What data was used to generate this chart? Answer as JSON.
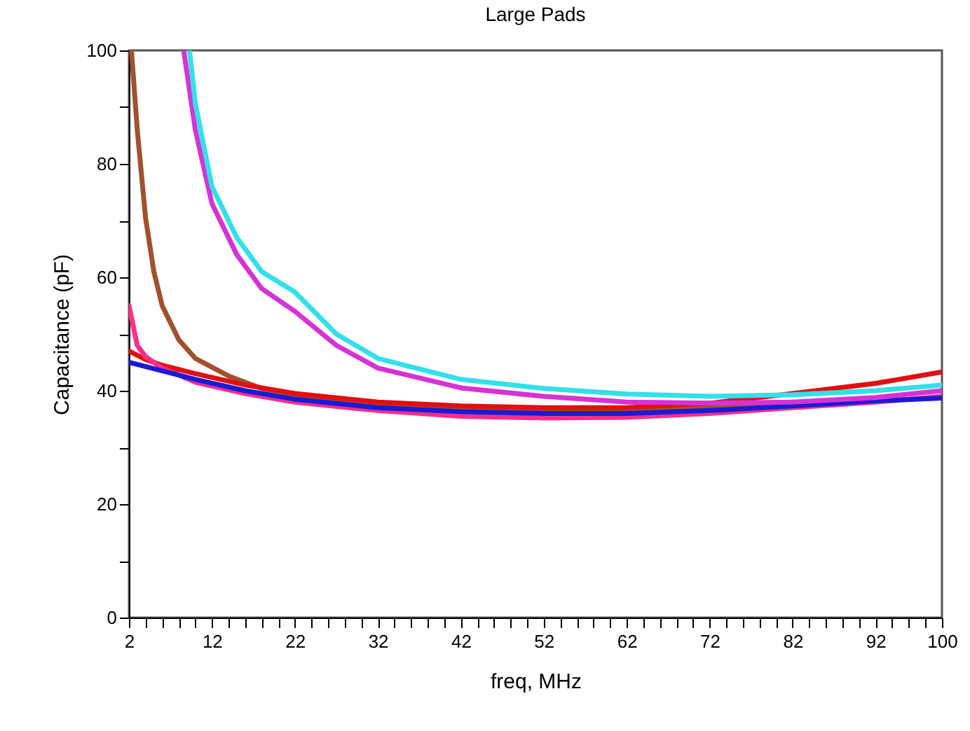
{
  "chart_data": {
    "type": "line",
    "title": "Large Pads",
    "xlabel": "freq, MHz",
    "ylabel": "Capacitance (pF)",
    "xlim": [
      2,
      100
    ],
    "ylim": [
      0,
      100
    ],
    "xticks": [
      2,
      {
        "value": 4,
        "label": null
      },
      {
        "value": 6,
        "label": null
      },
      {
        "value": 8,
        "label": null
      },
      {
        "value": 10,
        "label": null
      },
      12,
      {
        "value": 14,
        "label": null
      },
      {
        "value": 16,
        "label": null
      },
      {
        "value": 18,
        "label": null
      },
      {
        "value": 20,
        "label": null
      },
      22,
      {
        "value": 24,
        "label": null
      },
      {
        "value": 26,
        "label": null
      },
      {
        "value": 28,
        "label": null
      },
      {
        "value": 30,
        "label": null
      },
      32,
      {
        "value": 34,
        "label": null
      },
      {
        "value": 36,
        "label": null
      },
      {
        "value": 38,
        "label": null
      },
      {
        "value": 40,
        "label": null
      },
      42,
      {
        "value": 44,
        "label": null
      },
      {
        "value": 46,
        "label": null
      },
      {
        "value": 48,
        "label": null
      },
      {
        "value": 50,
        "label": null
      },
      52,
      {
        "value": 54,
        "label": null
      },
      {
        "value": 56,
        "label": null
      },
      {
        "value": 58,
        "label": null
      },
      {
        "value": 60,
        "label": null
      },
      62,
      {
        "value": 64,
        "label": null
      },
      {
        "value": 66,
        "label": null
      },
      {
        "value": 68,
        "label": null
      },
      {
        "value": 70,
        "label": null
      },
      72,
      {
        "value": 74,
        "label": null
      },
      {
        "value": 76,
        "label": null
      },
      {
        "value": 78,
        "label": null
      },
      {
        "value": 80,
        "label": null
      },
      82,
      {
        "value": 84,
        "label": null
      },
      {
        "value": 86,
        "label": null
      },
      {
        "value": 88,
        "label": null
      },
      {
        "value": 90,
        "label": null
      },
      92,
      {
        "value": 94,
        "label": null
      },
      {
        "value": 96,
        "label": null
      },
      {
        "value": 98,
        "label": null
      },
      100
    ],
    "yticks": [
      0,
      {
        "value": 10,
        "label": null
      },
      20,
      {
        "value": 30,
        "label": null
      },
      40,
      {
        "value": 50,
        "label": null
      },
      60,
      {
        "value": 70,
        "label": null
      },
      80,
      {
        "value": 90,
        "label": null
      },
      100
    ],
    "grid": false,
    "legend": false,
    "marker": "none",
    "line_style": "solid",
    "series": [
      {
        "color": "#a0522d",
        "x": [
          2.3,
          3,
          4,
          5,
          6,
          8,
          10,
          14,
          18,
          25,
          32,
          42,
          52,
          62,
          72,
          82
        ],
        "values": [
          100,
          86,
          70.5,
          61,
          55,
          49,
          45.7,
          42.6,
          40.4,
          38.5,
          37.5,
          36.8,
          36.5,
          36.6,
          37,
          38
        ]
      },
      {
        "color": "#e01010",
        "x": [
          2,
          4,
          6,
          10,
          16,
          22,
          32,
          42,
          52,
          62,
          72,
          82,
          92,
          100
        ],
        "values": [
          47,
          45.5,
          44.5,
          43,
          41,
          39.5,
          38,
          37.3,
          37,
          37,
          37.8,
          39.5,
          41.3,
          43.3
        ]
      },
      {
        "color": "#ff2d8a",
        "x": [
          2,
          3,
          4,
          6,
          10,
          16,
          22,
          32,
          42,
          52,
          62,
          72,
          82,
          92,
          100
        ],
        "values": [
          55,
          48,
          46,
          44,
          41.5,
          39.5,
          38,
          36.5,
          35.5,
          35.2,
          35.3,
          36,
          37,
          38,
          39
        ]
      },
      {
        "color": "#1a1ad6",
        "x": [
          2,
          6,
          10,
          16,
          22,
          32,
          42,
          52,
          62,
          72,
          82,
          92,
          100
        ],
        "values": [
          45,
          43.5,
          42,
          40,
          38.5,
          37,
          36.3,
          36,
          36,
          36.5,
          37.3,
          38.2,
          38.7
        ]
      },
      {
        "color": "#d633d6",
        "x": [
          8.6,
          10,
          12,
          15,
          18,
          22,
          27,
          32,
          42,
          52,
          62,
          72,
          82,
          92,
          100
        ],
        "values": [
          100,
          86,
          73,
          64,
          58,
          54,
          48,
          44,
          40.5,
          39,
          38,
          37.8,
          38,
          38.8,
          40
        ]
      },
      {
        "color": "#33e0e8",
        "x": [
          9.3,
          10,
          12,
          15,
          18,
          22,
          27,
          32,
          42,
          52,
          62,
          72,
          82,
          92,
          100
        ],
        "values": [
          100,
          90.7,
          76,
          67,
          61,
          57.4,
          50,
          45.7,
          42,
          40.4,
          39.4,
          39,
          39.3,
          40,
          41
        ]
      }
    ]
  }
}
